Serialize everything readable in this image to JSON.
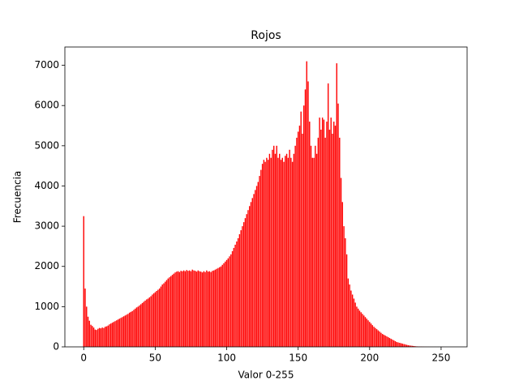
{
  "chart_data": {
    "type": "bar",
    "title": "Rojos",
    "xlabel": "Valor 0-255",
    "ylabel": "Frecuencia",
    "color": "#ff0000",
    "x": [
      0,
      1,
      2,
      3,
      4,
      5,
      6,
      7,
      8,
      9,
      10,
      11,
      12,
      13,
      14,
      15,
      16,
      17,
      18,
      19,
      20,
      21,
      22,
      23,
      24,
      25,
      26,
      27,
      28,
      29,
      30,
      31,
      32,
      33,
      34,
      35,
      36,
      37,
      38,
      39,
      40,
      41,
      42,
      43,
      44,
      45,
      46,
      47,
      48,
      49,
      50,
      51,
      52,
      53,
      54,
      55,
      56,
      57,
      58,
      59,
      60,
      61,
      62,
      63,
      64,
      65,
      66,
      67,
      68,
      69,
      70,
      71,
      72,
      73,
      74,
      75,
      76,
      77,
      78,
      79,
      80,
      81,
      82,
      83,
      84,
      85,
      86,
      87,
      88,
      89,
      90,
      91,
      92,
      93,
      94,
      95,
      96,
      97,
      98,
      99,
      100,
      101,
      102,
      103,
      104,
      105,
      106,
      107,
      108,
      109,
      110,
      111,
      112,
      113,
      114,
      115,
      116,
      117,
      118,
      119,
      120,
      121,
      122,
      123,
      124,
      125,
      126,
      127,
      128,
      129,
      130,
      131,
      132,
      133,
      134,
      135,
      136,
      137,
      138,
      139,
      140,
      141,
      142,
      143,
      144,
      145,
      146,
      147,
      148,
      149,
      150,
      151,
      152,
      153,
      154,
      155,
      156,
      157,
      158,
      159,
      160,
      161,
      162,
      163,
      164,
      165,
      166,
      167,
      168,
      169,
      170,
      171,
      172,
      173,
      174,
      175,
      176,
      177,
      178,
      179,
      180,
      181,
      182,
      183,
      184,
      185,
      186,
      187,
      188,
      189,
      190,
      191,
      192,
      193,
      194,
      195,
      196,
      197,
      198,
      199,
      200,
      201,
      202,
      203,
      204,
      205,
      206,
      207,
      208,
      209,
      210,
      211,
      212,
      213,
      214,
      215,
      216,
      217,
      218,
      219,
      220,
      221,
      222,
      223,
      224,
      225,
      226,
      227,
      228,
      229,
      230,
      231,
      232,
      233,
      234,
      235,
      236,
      237,
      238,
      239,
      240,
      241,
      242,
      243,
      244,
      245,
      246,
      247,
      248,
      249,
      250,
      251,
      252,
      253,
      254,
      255
    ],
    "values": [
      3250,
      1450,
      1000,
      750,
      650,
      550,
      520,
      480,
      430,
      420,
      450,
      470,
      460,
      480,
      470,
      500,
      510,
      530,
      560,
      580,
      600,
      620,
      640,
      660,
      680,
      700,
      720,
      740,
      760,
      780,
      800,
      820,
      850,
      870,
      890,
      920,
      950,
      980,
      1000,
      1030,
      1060,
      1090,
      1120,
      1150,
      1180,
      1200,
      1230,
      1260,
      1300,
      1330,
      1360,
      1390,
      1420,
      1450,
      1500,
      1550,
      1580,
      1620,
      1660,
      1700,
      1730,
      1760,
      1790,
      1820,
      1850,
      1870,
      1880,
      1860,
      1890,
      1880,
      1900,
      1880,
      1910,
      1890,
      1900,
      1880,
      1920,
      1900,
      1890,
      1870,
      1900,
      1880,
      1870,
      1850,
      1880,
      1860,
      1900,
      1870,
      1880,
      1860,
      1890,
      1900,
      1920,
      1940,
      1960,
      1980,
      2000,
      2040,
      2080,
      2120,
      2160,
      2200,
      2250,
      2300,
      2380,
      2460,
      2540,
      2620,
      2700,
      2800,
      2900,
      3000,
      3100,
      3200,
      3300,
      3400,
      3500,
      3600,
      3700,
      3800,
      3900,
      4000,
      4100,
      4250,
      4400,
      4550,
      4650,
      4600,
      4700,
      4650,
      4800,
      4700,
      4900,
      5000,
      4800,
      5000,
      4700,
      4800,
      4650,
      4700,
      4600,
      4750,
      4800,
      4700,
      4900,
      4700,
      4600,
      4800,
      5000,
      5200,
      5350,
      5500,
      5850,
      5300,
      6000,
      6400,
      7100,
      6600,
      5600,
      5000,
      4700,
      4700,
      5000,
      4800,
      5200,
      5700,
      5400,
      5700,
      5650,
      5200,
      5600,
      6550,
      5400,
      5700,
      5300,
      5600,
      5500,
      7050,
      6050,
      5200,
      4200,
      3600,
      3000,
      2700,
      2300,
      1700,
      1550,
      1400,
      1300,
      1200,
      1100,
      1000,
      950,
      900,
      860,
      820,
      780,
      740,
      700,
      660,
      620,
      580,
      540,
      500,
      470,
      440,
      410,
      380,
      350,
      320,
      300,
      280,
      260,
      240,
      220,
      200,
      180,
      160,
      140,
      120,
      110,
      100,
      90,
      80,
      70,
      60,
      50,
      40,
      35,
      30,
      25,
      20,
      15,
      12,
      10,
      8,
      6,
      5,
      4,
      3,
      2,
      2,
      1,
      1,
      1,
      1,
      1,
      0,
      1,
      0,
      0,
      1,
      0,
      0,
      0,
      0
    ],
    "xlim": [
      -13.19,
      268.19
    ],
    "xticks": [
      0,
      50,
      100,
      150,
      200,
      250
    ],
    "ylim": [
      0,
      7455
    ],
    "yticks": [
      0,
      1000,
      2000,
      3000,
      4000,
      5000,
      6000,
      7000
    ]
  }
}
